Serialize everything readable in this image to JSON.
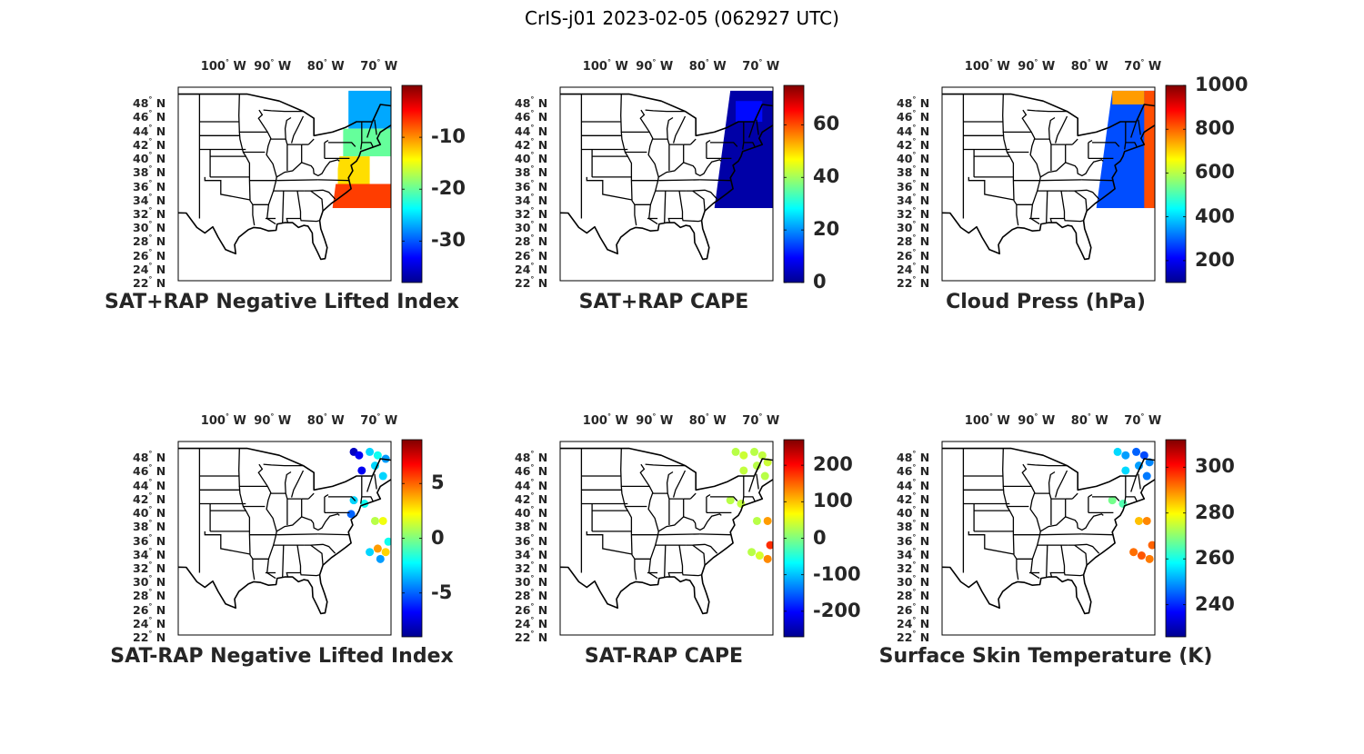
{
  "figure": {
    "title": "CrIS-j01 2023-02-05 (062927 UTC)",
    "lon_ticks": [
      {
        "value": -100,
        "deg": "100",
        "hem": "W"
      },
      {
        "value": -90,
        "deg": "90",
        "hem": "W"
      },
      {
        "value": -80,
        "deg": "80",
        "hem": "W"
      },
      {
        "value": -70,
        "deg": "70",
        "hem": "W"
      }
    ],
    "lat_ticks": [
      {
        "value": 48,
        "deg": "48",
        "hem": "N"
      },
      {
        "value": 46,
        "deg": "46",
        "hem": "N"
      },
      {
        "value": 44,
        "deg": "44",
        "hem": "N"
      },
      {
        "value": 42,
        "deg": "42",
        "hem": "N"
      },
      {
        "value": 40,
        "deg": "40",
        "hem": "N"
      },
      {
        "value": 38,
        "deg": "38",
        "hem": "N"
      },
      {
        "value": 36,
        "deg": "36",
        "hem": "N"
      },
      {
        "value": 34,
        "deg": "34",
        "hem": "N"
      },
      {
        "value": 32,
        "deg": "32",
        "hem": "N"
      },
      {
        "value": 30,
        "deg": "30",
        "hem": "N"
      },
      {
        "value": 28,
        "deg": "28",
        "hem": "N"
      },
      {
        "value": 26,
        "deg": "26",
        "hem": "N"
      },
      {
        "value": 24,
        "deg": "24",
        "hem": "N"
      },
      {
        "value": 22,
        "deg": "22",
        "hem": "N"
      }
    ],
    "lon_range": [
      -108,
      -68
    ],
    "lat_range": [
      22,
      50
    ],
    "colormap": "jet",
    "colormap_stops": [
      "#00008f",
      "#0000ff",
      "#0080ff",
      "#00ffff",
      "#80ff80",
      "#ffff00",
      "#ff8000",
      "#ff0000",
      "#800000"
    ]
  },
  "chart_data": [
    {
      "type": "map",
      "title": "SAT+RAP Negative Lifted Index",
      "colorbar": {
        "range": [
          -38,
          0
        ],
        "ticks": [
          {
            "value": -10,
            "label": "-10"
          },
          {
            "value": -20,
            "label": "-20"
          },
          {
            "value": -30,
            "label": "-30"
          }
        ]
      },
      "swath": {
        "lon_west_north": -76,
        "lon_west_south": -79,
        "lon_east": -68,
        "lat_north": 49.5,
        "lat_south": 32.5
      },
      "regions": [
        {
          "lon": [
            -76,
            -68
          ],
          "lat": [
            44,
            49.5
          ],
          "value": -27
        },
        {
          "lon": [
            -77,
            -68
          ],
          "lat": [
            40,
            44
          ],
          "value": -20
        },
        {
          "lon": [
            -78,
            -72
          ],
          "lat": [
            36,
            40
          ],
          "value": -13
        },
        {
          "lon": [
            -79,
            -68
          ],
          "lat": [
            32.5,
            36
          ],
          "value": -7
        }
      ]
    },
    {
      "type": "map",
      "title": "SAT+RAP CAPE",
      "colorbar": {
        "range": [
          0,
          75
        ],
        "ticks": [
          {
            "value": 60,
            "label": "60"
          },
          {
            "value": 40,
            "label": "40"
          },
          {
            "value": 20,
            "label": "20"
          },
          {
            "value": 0,
            "label": "0"
          }
        ]
      },
      "swath": {
        "lon_west_north": -76,
        "lon_west_south": -79,
        "lon_east": -68,
        "lat_north": 49.5,
        "lat_south": 32.5
      },
      "regions": [
        {
          "lon": [
            -79,
            -68
          ],
          "lat": [
            32.5,
            49.5
          ],
          "value": 2
        },
        {
          "lon": [
            -75,
            -70
          ],
          "lat": [
            45,
            48
          ],
          "value": 10
        }
      ]
    },
    {
      "type": "map",
      "title": "Cloud Press (hPa)",
      "colorbar": {
        "range": [
          100,
          1000
        ],
        "ticks": [
          {
            "value": 1000,
            "label": "1000"
          },
          {
            "value": 800,
            "label": "800"
          },
          {
            "value": 600,
            "label": "600"
          },
          {
            "value": 400,
            "label": "400"
          },
          {
            "value": 200,
            "label": "200"
          }
        ]
      },
      "swath": {
        "lon_west_north": -76,
        "lon_west_south": -79,
        "lon_east": -68,
        "lat_north": 49.5,
        "lat_south": 32.5
      },
      "regions": [
        {
          "lon": [
            -79,
            -68
          ],
          "lat": [
            32.5,
            49.5
          ],
          "value": 280
        },
        {
          "lon": [
            -70,
            -68
          ],
          "lat": [
            32.5,
            49.5
          ],
          "value": 820
        },
        {
          "lon": [
            -76,
            -70
          ],
          "lat": [
            47.5,
            49.5
          ],
          "value": 750
        }
      ]
    },
    {
      "type": "map",
      "title": "SAT-RAP Negative Lifted Index",
      "colorbar": {
        "range": [
          -9,
          9
        ],
        "ticks": [
          {
            "value": 5,
            "label": "5"
          },
          {
            "value": 0,
            "label": "0"
          },
          {
            "value": -5,
            "label": "-5"
          }
        ]
      },
      "points": [
        {
          "lon": -75,
          "lat": 48.5,
          "value": -8
        },
        {
          "lon": -74,
          "lat": 48,
          "value": -7
        },
        {
          "lon": -72,
          "lat": 48.5,
          "value": -3
        },
        {
          "lon": -70.5,
          "lat": 48,
          "value": -2
        },
        {
          "lon": -69,
          "lat": 47.5,
          "value": -4
        },
        {
          "lon": -71,
          "lat": 46.5,
          "value": -3
        },
        {
          "lon": -73.5,
          "lat": 45.8,
          "value": -7
        },
        {
          "lon": -69.5,
          "lat": 45,
          "value": -3
        },
        {
          "lon": -75,
          "lat": 41.5,
          "value": -3
        },
        {
          "lon": -73,
          "lat": 41,
          "value": -2
        },
        {
          "lon": -75.5,
          "lat": 39.5,
          "value": -5
        },
        {
          "lon": -71,
          "lat": 38.5,
          "value": 1
        },
        {
          "lon": -69.5,
          "lat": 38.5,
          "value": 2
        },
        {
          "lon": -72,
          "lat": 34,
          "value": -3
        },
        {
          "lon": -70.5,
          "lat": 34.5,
          "value": 4
        },
        {
          "lon": -69,
          "lat": 34,
          "value": 3
        },
        {
          "lon": -70,
          "lat": 33,
          "value": -4
        },
        {
          "lon": -68.5,
          "lat": 35.5,
          "value": -2
        }
      ]
    },
    {
      "type": "map",
      "title": "SAT-RAP CAPE",
      "colorbar": {
        "range": [
          -270,
          270
        ],
        "ticks": [
          {
            "value": 200,
            "label": "200"
          },
          {
            "value": 100,
            "label": "100"
          },
          {
            "value": 0,
            "label": "0"
          },
          {
            "value": -100,
            "label": "-100"
          },
          {
            "value": -200,
            "label": "-200"
          }
        ]
      },
      "points": [
        {
          "lon": -75,
          "lat": 48.5,
          "value": 30
        },
        {
          "lon": -73.5,
          "lat": 48,
          "value": 40
        },
        {
          "lon": -71.5,
          "lat": 48.5,
          "value": 30
        },
        {
          "lon": -70,
          "lat": 48,
          "value": 35
        },
        {
          "lon": -69,
          "lat": 47,
          "value": 40
        },
        {
          "lon": -71,
          "lat": 46.5,
          "value": 30
        },
        {
          "lon": -73.5,
          "lat": 45.8,
          "value": 35
        },
        {
          "lon": -69.5,
          "lat": 45,
          "value": 30
        },
        {
          "lon": -76,
          "lat": 41.5,
          "value": 30
        },
        {
          "lon": -74,
          "lat": 41,
          "value": 35
        },
        {
          "lon": -71,
          "lat": 38.5,
          "value": 30
        },
        {
          "lon": -69,
          "lat": 38.5,
          "value": 120
        },
        {
          "lon": -72,
          "lat": 34,
          "value": 30
        },
        {
          "lon": -70.5,
          "lat": 33.5,
          "value": 45
        },
        {
          "lon": -68.5,
          "lat": 35,
          "value": 180
        },
        {
          "lon": -69,
          "lat": 33,
          "value": 130
        }
      ]
    },
    {
      "type": "map",
      "title": "Surface Skin Temperature (K)",
      "colorbar": {
        "range": [
          226,
          312
        ],
        "ticks": [
          {
            "value": 300,
            "label": "300"
          },
          {
            "value": 280,
            "label": "280"
          },
          {
            "value": 260,
            "label": "260"
          },
          {
            "value": 240,
            "label": "240"
          }
        ]
      },
      "points": [
        {
          "lon": -75,
          "lat": 48.5,
          "value": 255
        },
        {
          "lon": -73.5,
          "lat": 48,
          "value": 250
        },
        {
          "lon": -71.5,
          "lat": 48.5,
          "value": 245
        },
        {
          "lon": -70,
          "lat": 48,
          "value": 243
        },
        {
          "lon": -69,
          "lat": 47,
          "value": 248
        },
        {
          "lon": -71,
          "lat": 46.5,
          "value": 250
        },
        {
          "lon": -73.5,
          "lat": 45.8,
          "value": 255
        },
        {
          "lon": -69.5,
          "lat": 45,
          "value": 247
        },
        {
          "lon": -76,
          "lat": 41.5,
          "value": 268
        },
        {
          "lon": -74,
          "lat": 41,
          "value": 265
        },
        {
          "lon": -71,
          "lat": 38.5,
          "value": 285
        },
        {
          "lon": -69.5,
          "lat": 38.5,
          "value": 290
        },
        {
          "lon": -72,
          "lat": 34,
          "value": 292
        },
        {
          "lon": -70.5,
          "lat": 33.5,
          "value": 294
        },
        {
          "lon": -68.5,
          "lat": 35,
          "value": 293
        },
        {
          "lon": -69,
          "lat": 33,
          "value": 291
        }
      ]
    }
  ]
}
